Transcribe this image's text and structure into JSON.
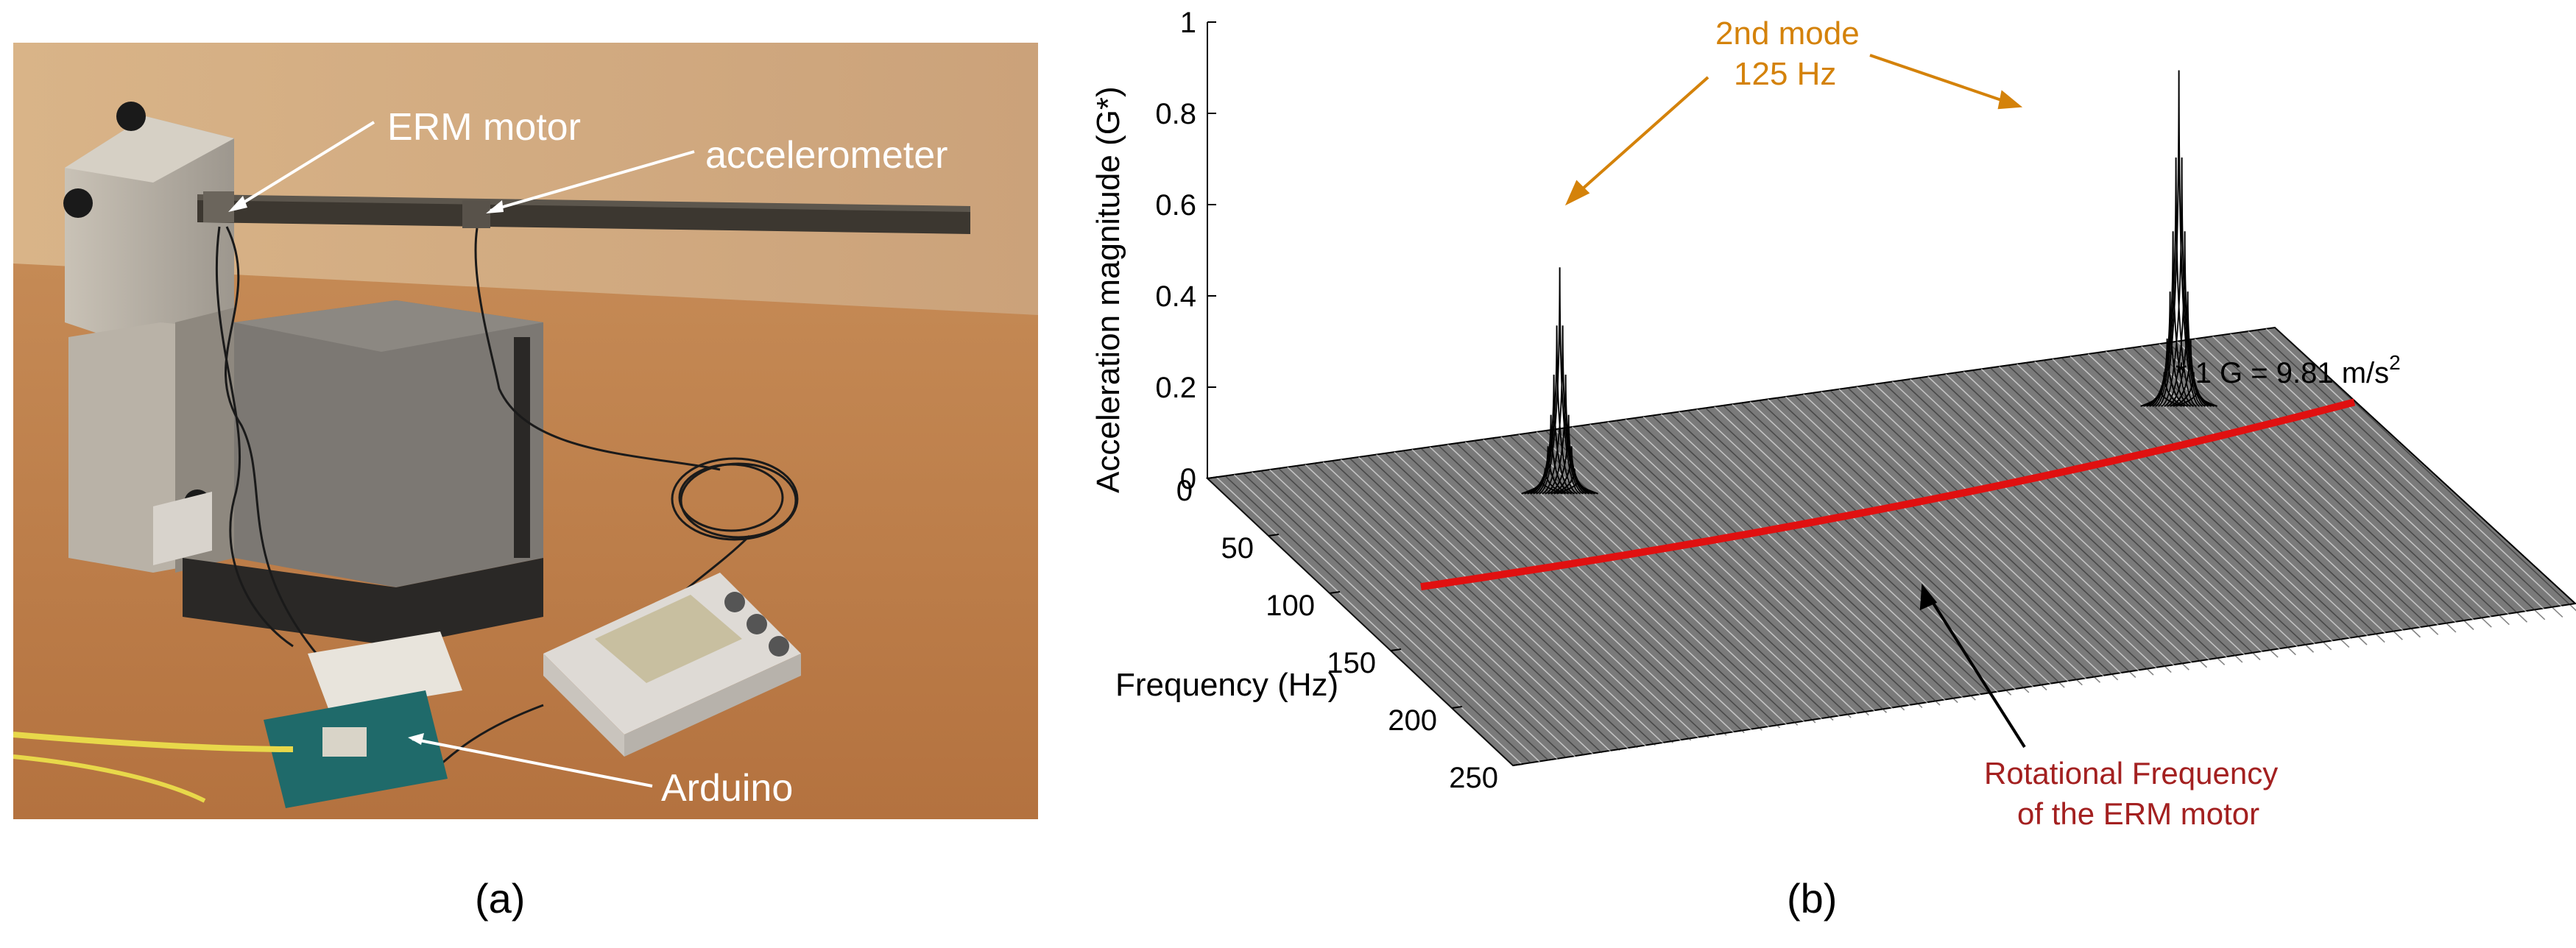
{
  "panel_a": {
    "caption": "(a)",
    "labels": {
      "erm_motor": "ERM motor",
      "accelerometer": "accelerometer",
      "arduino": "Arduino"
    }
  },
  "panel_b": {
    "caption": "(b)",
    "chart_data": {
      "type": "3d-waterfall",
      "zlabel": "Acceleration magnitude (G*)",
      "ylabel": "Frequency (Hz)",
      "z_ticks": [
        "1",
        "0.8",
        "0.6",
        "0.4",
        "0.2",
        "0"
      ],
      "y_ticks": [
        "0",
        "50",
        "100",
        "150",
        "200",
        "250"
      ],
      "zlim": [
        0,
        1
      ],
      "ylim": [
        0,
        250
      ],
      "peaks": [
        {
          "frequency_hz": 125,
          "magnitude_g": 0.48
        },
        {
          "frequency_hz": 125,
          "magnitude_g": 0.72
        }
      ],
      "annotations": {
        "mode_line1": "2nd mode",
        "mode_line2": "125 Hz",
        "unit_note_prefix": "* 1 G = 9.81 m/s",
        "unit_note_sup": "2",
        "rot_line1": "Rotational Frequency",
        "rot_line2": "of the ERM motor"
      },
      "colors": {
        "mode_annotation": "#d4820a",
        "rotational_curve": "#e01010",
        "rotational_text": "#a32020"
      }
    }
  }
}
